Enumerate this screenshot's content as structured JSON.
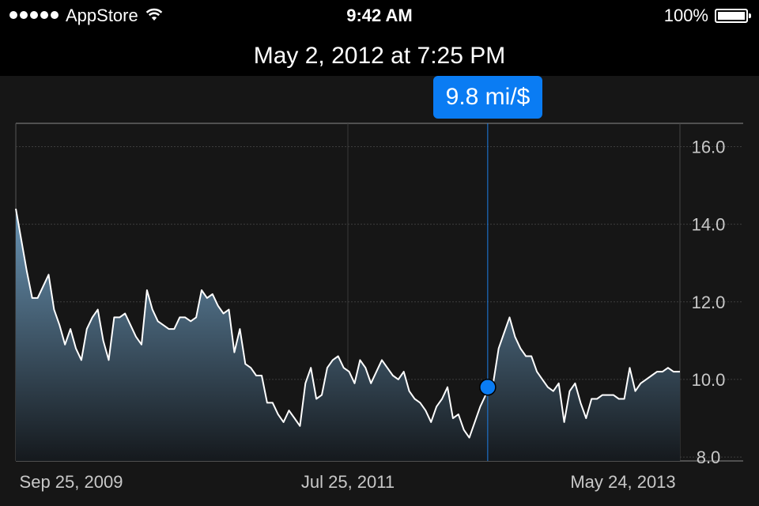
{
  "status_bar": {
    "carrier": "AppStore",
    "time": "9:42 AM",
    "battery": "100%",
    "signal_bars": 5,
    "icons": [
      "signal-dots-icon",
      "wifi-icon",
      "battery-icon"
    ]
  },
  "header": {
    "title": "May 2, 2012 at 7:25 PM"
  },
  "tooltip": {
    "value": "9.8 mi/$"
  },
  "colors": {
    "accent": "#0a7cf3",
    "background": "#161616",
    "header_bg": "#000000",
    "line": "#ffffff"
  },
  "chart_data": {
    "type": "area",
    "ylabel": "",
    "xlabel": "",
    "ylim": [
      7.9,
      16.6
    ],
    "xlim": [
      "2009-09-25",
      "2013-05-24"
    ],
    "y_ticks": [
      "16.0",
      "14.0",
      "12.0",
      "10.0",
      "8.0"
    ],
    "x_tick_labels": [
      "Sep 25, 2009",
      "Jul 25, 2011",
      "May 24, 2013"
    ],
    "grid": true,
    "selected": {
      "date": "2012-05-02",
      "value": 9.8
    },
    "series": [
      {
        "x": [
          "2009-09-25",
          "2009-10-06",
          "2009-10-17",
          "2009-10-28",
          "2009-11-08",
          "2009-11-19",
          "2009-11-30",
          "2009-12-11",
          "2009-12-22",
          "2010-01-02",
          "2010-01-13",
          "2010-01-24",
          "2010-02-04",
          "2010-02-15",
          "2010-02-26",
          "2010-03-09",
          "2010-03-20",
          "2010-03-31",
          "2010-04-11",
          "2010-04-22",
          "2010-05-03",
          "2010-05-14",
          "2010-05-25",
          "2010-06-05",
          "2010-06-16",
          "2010-06-27",
          "2010-07-08",
          "2010-07-19",
          "2010-07-30",
          "2010-08-10",
          "2010-08-21",
          "2010-09-01",
          "2010-09-12",
          "2010-09-23",
          "2010-10-04",
          "2010-10-15",
          "2010-10-26",
          "2010-11-06",
          "2010-11-17",
          "2010-11-28",
          "2010-12-09",
          "2010-12-20",
          "2010-12-31",
          "2011-01-11",
          "2011-01-22",
          "2011-02-02",
          "2011-02-13",
          "2011-02-24",
          "2011-03-07",
          "2011-03-18",
          "2011-03-29",
          "2011-04-09",
          "2011-04-20",
          "2011-05-01",
          "2011-05-12",
          "2011-05-23",
          "2011-06-03",
          "2011-06-14",
          "2011-06-25",
          "2011-07-06",
          "2011-07-17",
          "2011-07-28",
          "2011-08-08",
          "2011-08-19",
          "2011-08-30",
          "2011-09-10",
          "2011-09-21",
          "2011-10-02",
          "2011-10-13",
          "2011-10-24",
          "2011-11-04",
          "2011-11-15",
          "2011-11-26",
          "2011-12-07",
          "2011-12-18",
          "2011-12-29",
          "2012-01-09",
          "2012-01-20",
          "2012-01-31",
          "2012-02-11",
          "2012-02-22",
          "2012-03-04",
          "2012-03-15",
          "2012-03-26",
          "2012-04-06",
          "2012-04-17",
          "2012-04-28",
          "2012-05-02",
          "2012-05-13",
          "2012-05-24",
          "2012-06-04",
          "2012-06-15",
          "2012-06-26",
          "2012-07-07",
          "2012-07-18",
          "2012-07-29",
          "2012-08-09",
          "2012-08-20",
          "2012-08-31",
          "2012-09-11",
          "2012-09-22",
          "2012-10-03",
          "2012-10-14",
          "2012-10-25",
          "2012-11-05",
          "2012-11-16",
          "2012-11-27",
          "2012-12-08",
          "2012-12-19",
          "2012-12-30",
          "2013-01-10",
          "2013-01-21",
          "2013-02-01",
          "2013-02-12",
          "2013-02-23",
          "2013-03-06",
          "2013-03-17",
          "2013-03-28",
          "2013-04-08",
          "2013-04-19",
          "2013-04-30",
          "2013-05-11",
          "2013-05-24"
        ],
        "y": [
          14.4,
          13.6,
          12.8,
          12.1,
          12.1,
          12.4,
          12.7,
          11.8,
          11.4,
          10.9,
          11.3,
          10.8,
          10.5,
          11.3,
          11.6,
          11.8,
          11.0,
          10.5,
          11.6,
          11.6,
          11.7,
          11.4,
          11.1,
          10.9,
          12.3,
          11.8,
          11.5,
          11.4,
          11.3,
          11.3,
          11.6,
          11.6,
          11.5,
          11.6,
          12.3,
          12.1,
          12.2,
          11.9,
          11.7,
          11.8,
          10.7,
          11.3,
          10.4,
          10.3,
          10.1,
          10.1,
          9.4,
          9.4,
          9.1,
          8.9,
          9.2,
          9.0,
          8.8,
          9.9,
          10.3,
          9.5,
          9.6,
          10.3,
          10.5,
          10.6,
          10.3,
          10.2,
          9.9,
          10.5,
          10.3,
          9.9,
          10.2,
          10.5,
          10.3,
          10.1,
          10.0,
          10.2,
          9.7,
          9.5,
          9.4,
          9.2,
          8.9,
          9.3,
          9.5,
          9.8,
          9.0,
          9.1,
          8.7,
          8.5,
          8.9,
          9.3,
          9.6,
          9.8,
          9.9,
          10.8,
          11.2,
          11.6,
          11.1,
          10.8,
          10.6,
          10.6,
          10.2,
          10.0,
          9.8,
          9.7,
          9.9,
          8.9,
          9.7,
          9.9,
          9.4,
          9.0,
          9.5,
          9.5,
          9.6,
          9.6,
          9.6,
          9.5,
          9.5,
          10.3,
          9.7,
          9.9,
          10.0,
          10.1,
          10.2,
          10.2,
          10.3,
          10.2,
          10.2
        ]
      }
    ]
  }
}
